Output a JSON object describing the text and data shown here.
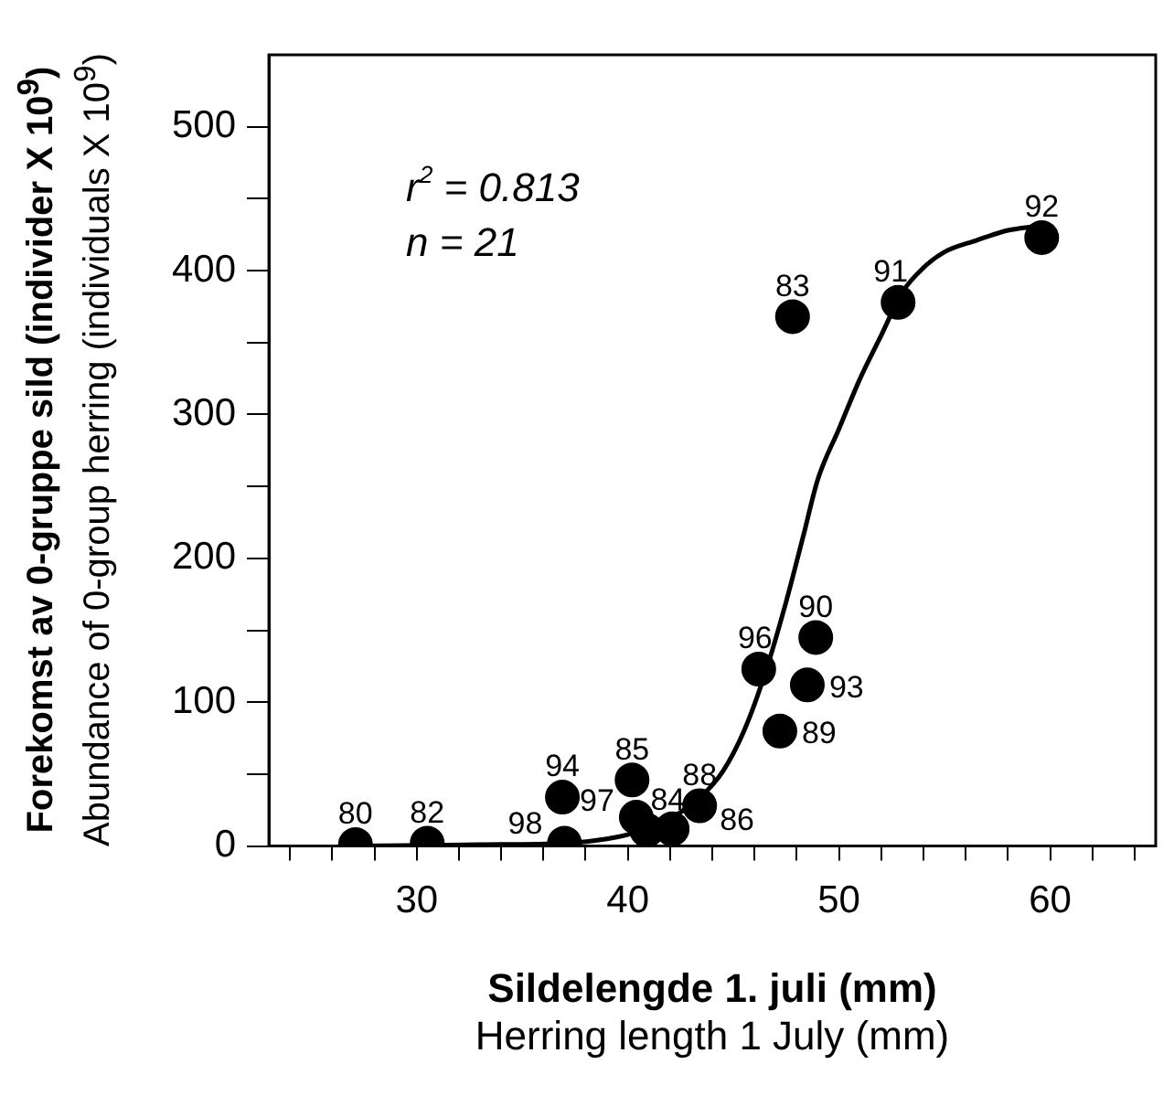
{
  "chart_data": {
    "type": "scatter",
    "xlabel": "Sildelengde 1. juli (mm)\nHerring length 1 July (mm)",
    "ylabel": "Forekomst av 0-gruppe sild (individer X 10$^{9}$)\nAbundance of 0-group herring (individuals X 10$^{9}$)",
    "annotations": [
      "r$^{2}$ = 0.813",
      "n = 21",
      {
        "text": "80",
        "x": 27.1,
        "y": 1
      },
      {
        "text": "82",
        "x": 30.5,
        "y": 2
      },
      {
        "text": "94",
        "x": 36.9,
        "y": 34
      },
      {
        "text": "98",
        "x": 37.0,
        "y": 2
      },
      {
        "text": "85",
        "x": 40.2,
        "y": 46
      },
      {
        "text": "97",
        "x": 40.4,
        "y": 20
      },
      {
        "text": "84",
        "x": 40.9,
        "y": 11
      },
      {
        "text": "86",
        "x": 42.1,
        "y": 12
      },
      {
        "text": "88",
        "x": 43.4,
        "y": 28
      },
      {
        "text": "96",
        "x": 46.2,
        "y": 123
      },
      {
        "text": "89",
        "x": 47.2,
        "y": 80
      },
      {
        "text": "93",
        "x": 48.5,
        "y": 112
      },
      {
        "text": "90",
        "x": 48.9,
        "y": 145
      },
      {
        "text": "83",
        "x": 47.8,
        "y": 368
      },
      {
        "text": "91",
        "x": 52.8,
        "y": 378
      },
      {
        "text": "92",
        "x": 59.6,
        "y": 423
      }
    ],
    "xlim": [
      23,
      65
    ],
    "xticks": [
      {
        "value": 24,
        "label": null
      },
      {
        "value": 26,
        "label": null
      },
      {
        "value": 28,
        "label": null
      },
      30,
      {
        "value": 32,
        "label": null
      },
      {
        "value": 34,
        "label": null
      },
      {
        "value": 36,
        "label": null
      },
      {
        "value": 38,
        "label": null
      },
      40,
      {
        "value": 42,
        "label": null
      },
      {
        "value": 44,
        "label": null
      },
      {
        "value": 46,
        "label": null
      },
      {
        "value": 48,
        "label": null
      },
      50,
      {
        "value": 52,
        "label": null
      },
      {
        "value": 54,
        "label": null
      },
      {
        "value": 56,
        "label": null
      },
      {
        "value": 58,
        "label": null
      },
      60,
      {
        "value": 62,
        "label": null
      },
      {
        "value": 64,
        "label": null
      }
    ],
    "ylim": [
      0,
      550
    ],
    "yticks": [
      0,
      {
        "value": 50,
        "label": null
      },
      100,
      {
        "value": 150,
        "label": null
      },
      200,
      {
        "value": 250,
        "label": null
      },
      300,
      {
        "value": 350,
        "label": null
      },
      400,
      {
        "value": 450,
        "label": null
      },
      500
    ],
    "grid": false,
    "legend": false,
    "marker": "circle",
    "series": [
      {
        "color": "#000000",
        "x": [
          27.1,
          30.5,
          36.9,
          37.0,
          40.2,
          40.4,
          40.9,
          42.1,
          43.4,
          46.2,
          47.2,
          48.5,
          48.9,
          47.8,
          52.8,
          59.6
        ],
        "values": [
          1,
          2,
          34,
          2,
          46,
          20,
          11,
          12,
          28,
          123,
          80,
          112,
          145,
          368,
          378,
          423
        ]
      },
      {
        "type": "line",
        "color": "#000000",
        "marker": "none",
        "line_style": "solid",
        "x": [
          27.1,
          33,
          37,
          39,
          40.5,
          42,
          43.5,
          44.5,
          45.5,
          46.5,
          47.5,
          48.3,
          49,
          50,
          51,
          52,
          53,
          54,
          55,
          56.5,
          58,
          59.4
        ],
        "values": [
          0,
          1,
          2,
          5,
          10,
          19,
          35,
          52,
          80,
          120,
          170,
          215,
          255,
          290,
          325,
          355,
          385,
          402,
          413,
          421,
          428,
          431
        ]
      }
    ]
  }
}
